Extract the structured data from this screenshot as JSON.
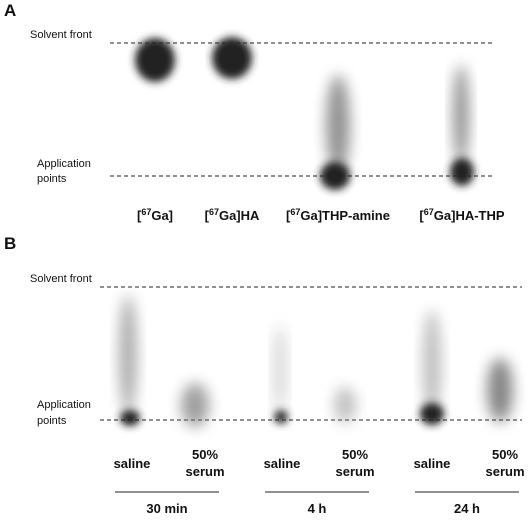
{
  "panel_a": {
    "letter": "A",
    "solvent_front": "Solvent front",
    "application": [
      "Application",
      "points"
    ],
    "lanes": [
      {
        "open": "[",
        "sup": "67",
        "rest": "Ga]"
      },
      {
        "open": "[",
        "sup": "67",
        "rest": "Ga]HA"
      },
      {
        "open": "[",
        "sup": "67",
        "rest": "Ga]THP-amine"
      },
      {
        "open": "[",
        "sup": "67",
        "rest": "Ga]HA-THP"
      }
    ]
  },
  "panel_b": {
    "letter": "B",
    "solvent_front": "Solvent front",
    "application": [
      "Application",
      "points"
    ],
    "groups": [
      {
        "label": "30 min",
        "lanes": [
          [
            "saline"
          ],
          [
            "50%",
            "serum"
          ]
        ]
      },
      {
        "label": "4 h",
        "lanes": [
          [
            "saline"
          ],
          [
            "50%",
            "serum"
          ]
        ]
      },
      {
        "label": "24 h",
        "lanes": [
          [
            "saline"
          ],
          [
            "50%",
            "serum"
          ]
        ]
      }
    ]
  }
}
